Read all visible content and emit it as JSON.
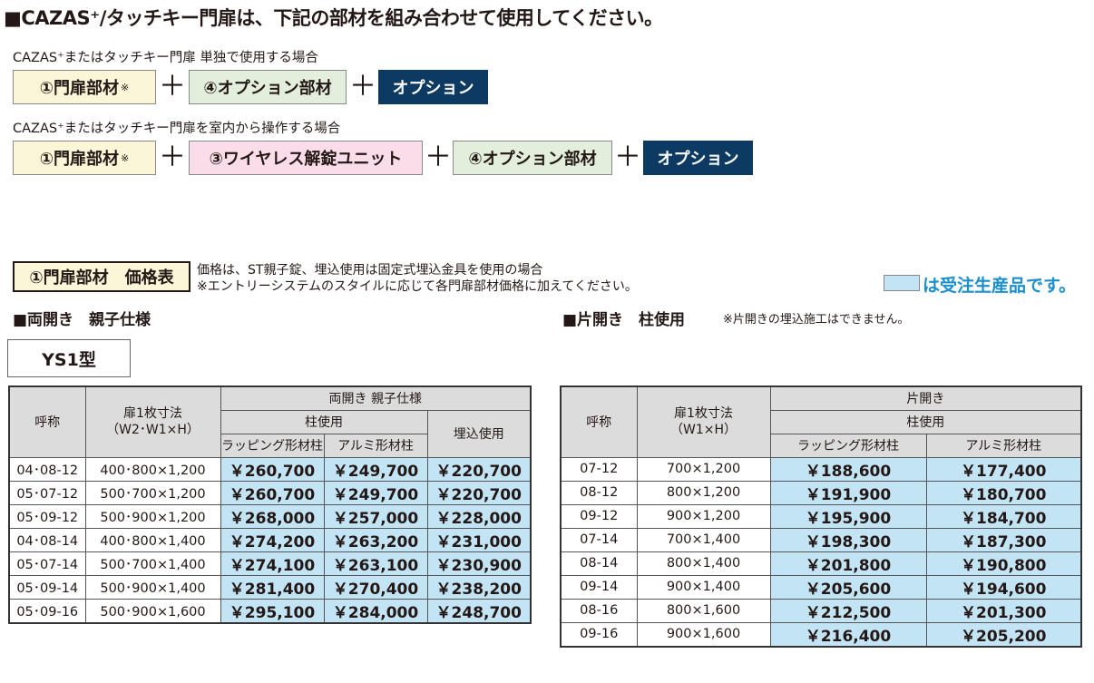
{
  "title": "■CAZAS⁺/タッチキー門扉は、下記の部材を組み合わせて使用してください。",
  "case1": {
    "caption": "CAZAS⁺またはタッチキー門扉 単独で使用する場合",
    "item1": "①門扉部材",
    "item1_note": "※",
    "plus": "＋",
    "item2": "④オプション部材",
    "item3": "オプション"
  },
  "case2": {
    "caption": "CAZAS⁺またはタッチキー門扉を室内から操作する場合",
    "item1": "①門扉部材",
    "item1_note": "※",
    "plus": "＋",
    "item2": "③ワイヤレス解錠ユニット",
    "item3": "④オプション部材",
    "item4": "オプション"
  },
  "price_section": {
    "box_label": "①門扉部材　価格表",
    "note1": "価格は、ST親子錠、埋込使用は固定式埋込金具を使用の場合",
    "note2": "※エントリーシステムのスタイルに応じて各門扉部材価格に加えてください。",
    "legend": "は受注生産品です。",
    "legend_color": "#c3e4f4"
  },
  "left": {
    "heading": "■両開き　親子仕様",
    "type_label": "YS1型",
    "headers": {
      "name": "呼称",
      "size": "扉1枚寸法\n（W2･W1×H）",
      "group": "両開き 親子仕様",
      "pillar": "柱使用",
      "wrap": "ラッピング形材柱",
      "alumi": "アルミ形材柱",
      "embed": "埋込使用"
    },
    "rows": [
      {
        "code": "04･08-12",
        "size": "400･800×1,200",
        "wrap": "￥260,700",
        "alumi": "￥249,700",
        "embed": "￥220,700"
      },
      {
        "code": "05･07-12",
        "size": "500･700×1,200",
        "wrap": "￥260,700",
        "alumi": "￥249,700",
        "embed": "￥220,700"
      },
      {
        "code": "05･09-12",
        "size": "500･900×1,200",
        "wrap": "￥268,000",
        "alumi": "￥257,000",
        "embed": "￥228,000"
      },
      {
        "code": "04･08-14",
        "size": "400･800×1,400",
        "wrap": "￥274,200",
        "alumi": "￥263,200",
        "embed": "￥231,000"
      },
      {
        "code": "05･07-14",
        "size": "500･700×1,400",
        "wrap": "￥274,100",
        "alumi": "￥263,100",
        "embed": "￥230,900"
      },
      {
        "code": "05･09-14",
        "size": "500･900×1,400",
        "wrap": "￥281,400",
        "alumi": "￥270,400",
        "embed": "￥238,200"
      },
      {
        "code": "05･09-16",
        "size": "500･900×1,600",
        "wrap": "￥295,100",
        "alumi": "￥284,000",
        "embed": "￥248,700"
      }
    ]
  },
  "right": {
    "heading": "■片開き　柱使用",
    "heading_note": "※片開きの埋込施工はできません。",
    "headers": {
      "name": "呼称",
      "size": "扉1枚寸法\n（W1×H）",
      "group": "片開き",
      "pillar": "柱使用",
      "wrap": "ラッピング形材柱",
      "alumi": "アルミ形材柱"
    },
    "rows": [
      {
        "code": "07-12",
        "size": "700×1,200",
        "wrap": "￥188,600",
        "alumi": "￥177,400"
      },
      {
        "code": "08-12",
        "size": "800×1,200",
        "wrap": "￥191,900",
        "alumi": "￥180,700"
      },
      {
        "code": "09-12",
        "size": "900×1,200",
        "wrap": "￥195,900",
        "alumi": "￥184,700"
      },
      {
        "code": "07-14",
        "size": "700×1,400",
        "wrap": "￥198,300",
        "alumi": "￥187,300"
      },
      {
        "code": "08-14",
        "size": "800×1,400",
        "wrap": "￥201,800",
        "alumi": "￥190,800"
      },
      {
        "code": "09-14",
        "size": "900×1,400",
        "wrap": "￥205,600",
        "alumi": "￥194,600"
      },
      {
        "code": "08-16",
        "size": "800×1,600",
        "wrap": "￥212,500",
        "alumi": "￥201,300"
      },
      {
        "code": "09-16",
        "size": "900×1,600",
        "wrap": "￥216,400",
        "alumi": "￥205,200"
      }
    ]
  }
}
